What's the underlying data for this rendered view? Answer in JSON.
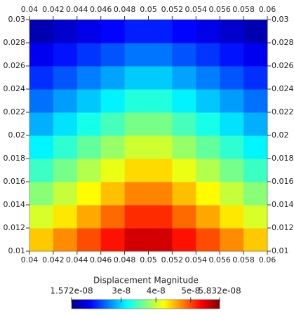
{
  "chart_data": {
    "type": "heatmap",
    "x": [
      0.041,
      0.043,
      0.045,
      0.047,
      0.049,
      0.051,
      0.053,
      0.055,
      0.057,
      0.059
    ],
    "y": [
      0.011,
      0.013,
      0.015,
      0.017,
      0.019,
      0.021,
      0.023,
      0.025,
      0.027,
      0.029
    ],
    "z": [
      [
        4.46e-08,
        4.72e-08,
        4.98e-08,
        5.23e-08,
        5.49e-08,
        5.49e-08,
        5.23e-08,
        4.98e-08,
        4.72e-08,
        4.46e-08
      ],
      [
        4.07e-08,
        4.33e-08,
        4.6e-08,
        4.86e-08,
        5.12e-08,
        5.12e-08,
        4.86e-08,
        4.6e-08,
        4.33e-08,
        4.07e-08
      ],
      [
        3.74e-08,
        3.99e-08,
        4.25e-08,
        4.5e-08,
        4.75e-08,
        4.75e-08,
        4.5e-08,
        4.25e-08,
        3.99e-08,
        3.74e-08
      ],
      [
        3.42e-08,
        3.66e-08,
        3.91e-08,
        4.15e-08,
        4.39e-08,
        4.39e-08,
        4.15e-08,
        3.91e-08,
        3.66e-08,
        3.42e-08
      ],
      [
        3.13e-08,
        3.36e-08,
        3.58e-08,
        3.8e-08,
        4.03e-08,
        4.03e-08,
        3.8e-08,
        3.58e-08,
        3.36e-08,
        3.13e-08
      ],
      [
        2.84e-08,
        3.05e-08,
        3.26e-08,
        3.46e-08,
        3.67e-08,
        3.67e-08,
        3.46e-08,
        3.26e-08,
        3.05e-08,
        2.84e-08
      ],
      [
        2.57e-08,
        2.76e-08,
        2.94e-08,
        3.12e-08,
        3.31e-08,
        3.31e-08,
        3.12e-08,
        2.94e-08,
        2.76e-08,
        2.57e-08
      ],
      [
        2.3e-08,
        2.46e-08,
        2.63e-08,
        2.79e-08,
        2.95e-08,
        2.95e-08,
        2.79e-08,
        2.63e-08,
        2.46e-08,
        2.3e-08
      ],
      [
        2.04e-08,
        2.18e-08,
        2.32e-08,
        2.45e-08,
        2.59e-08,
        2.59e-08,
        2.45e-08,
        2.32e-08,
        2.18e-08,
        2.04e-08
      ],
      [
        1.78e-08,
        1.89e-08,
        2.01e-08,
        2.12e-08,
        2.23e-08,
        2.23e-08,
        2.12e-08,
        2.01e-08,
        1.89e-08,
        1.78e-08
      ]
    ],
    "xlim": [
      0.04,
      0.06
    ],
    "ylim": [
      0.01,
      0.03
    ],
    "xticks": [
      0.04,
      0.042,
      0.044,
      0.046,
      0.048,
      0.05,
      0.052,
      0.054,
      0.056,
      0.058,
      0.06
    ],
    "yticks": [
      0.01,
      0.012,
      0.014,
      0.016,
      0.018,
      0.02,
      0.022,
      0.024,
      0.026,
      0.028,
      0.03
    ],
    "colorbar_title": "Displacement Magnitude",
    "clim": [
      1.572e-08,
      5.832e-08
    ],
    "cticks": [
      {
        "value": 1.572e-08,
        "label": "1.572e-08"
      },
      {
        "value": 3e-08,
        "label": "3e-8"
      },
      {
        "value": 4e-08,
        "label": "4e-8"
      },
      {
        "value": 5e-08,
        "label": "5e-8"
      },
      {
        "value": 5.832e-08,
        "label": "5.832e-08"
      }
    ],
    "colormap": [
      "#000080",
      "#0000ff",
      "#0080ff",
      "#00ffff",
      "#80ff80",
      "#ffff00",
      "#ff8000",
      "#ff0000",
      "#800000"
    ]
  }
}
